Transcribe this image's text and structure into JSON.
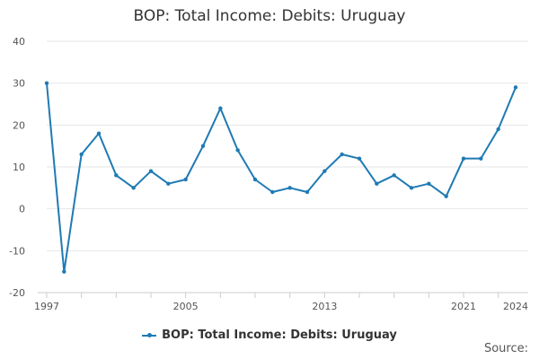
{
  "chart_data": {
    "type": "line",
    "title": "BOP: Total Income: Debits: Uruguay",
    "x": [
      1997,
      1998,
      1999,
      2000,
      2001,
      2002,
      2003,
      2004,
      2005,
      2006,
      2007,
      2008,
      2009,
      2010,
      2011,
      2012,
      2013,
      2014,
      2015,
      2016,
      2017,
      2018,
      2019,
      2020,
      2021,
      2022,
      2023,
      2024
    ],
    "series": [
      {
        "name": "BOP: Total Income: Debits: Uruguay",
        "values": [
          30,
          -15,
          13,
          18,
          8,
          5,
          9,
          6,
          7,
          15,
          24,
          14,
          7,
          4,
          5,
          4,
          9,
          13,
          12,
          6,
          8,
          5,
          6,
          3,
          12,
          12,
          19,
          29
        ]
      }
    ],
    "xticks": [
      1997,
      2005,
      2013,
      2021,
      2024
    ],
    "yticks": [
      -20,
      -10,
      0,
      10,
      20,
      30,
      40
    ],
    "ylim": [
      -20,
      40
    ],
    "grid": true,
    "legend_position": "bottom-center",
    "color": "#1f7ab4"
  },
  "source_label": "Source:"
}
